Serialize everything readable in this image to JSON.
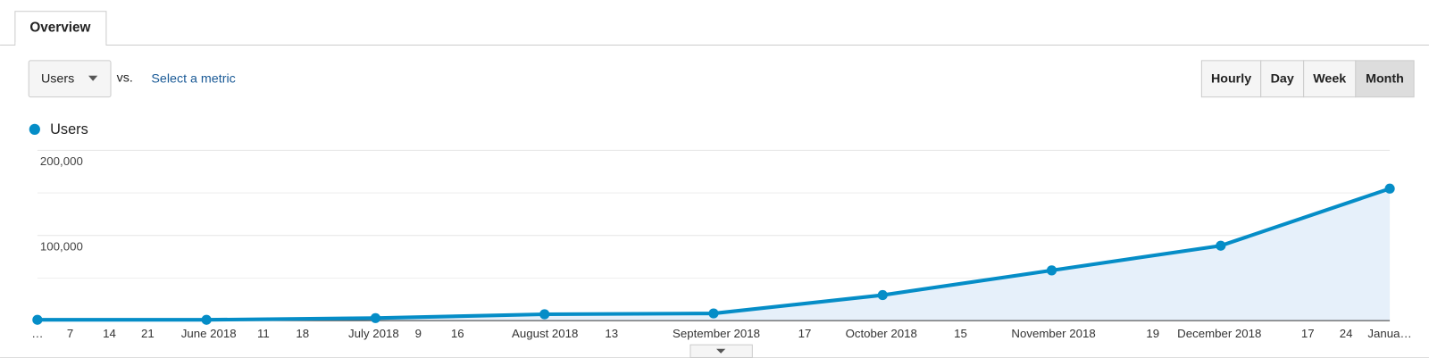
{
  "tab": {
    "label": "Overview"
  },
  "metric_select": {
    "label": "Users"
  },
  "vs_label": "vs.",
  "select_metric_link": "Select a metric",
  "granularity": {
    "options": [
      "Hourly",
      "Day",
      "Week",
      "Month"
    ],
    "selected": 3
  },
  "chart_data": {
    "type": "line",
    "series": [
      {
        "name": "Users",
        "color": "#058dc7",
        "values": [
          1000,
          1000,
          3000,
          7500,
          8500,
          30000,
          59000,
          88000,
          155000
        ]
      }
    ],
    "ylim": [
      0,
      200000
    ],
    "yticks": [
      {
        "value": 100000,
        "label": "100,000"
      },
      {
        "value": 200000,
        "label": "200,000"
      }
    ],
    "x_labels": [
      "…",
      "7",
      "14",
      "21",
      "June 2018",
      "11",
      "18",
      "July 2018",
      "9",
      "16",
      "August 2018",
      "13",
      "September 2018",
      "17",
      "October 2018",
      "15",
      "November 2018",
      "19",
      "December 2018",
      "17",
      "24",
      "Janua…"
    ],
    "grid": true,
    "area_fill": "#e6f0fa"
  }
}
